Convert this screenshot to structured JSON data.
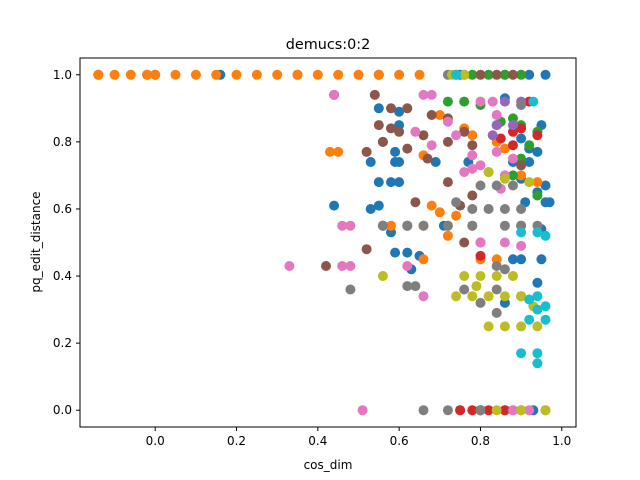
{
  "chart_data": {
    "type": "scatter",
    "title": "demucs:0:2",
    "xlabel": "cos_dim",
    "ylabel": "pq_edit_distance",
    "xlim": [
      -0.185,
      1.035
    ],
    "ylim": [
      -0.05,
      1.05
    ],
    "xticks": [
      0.0,
      0.2,
      0.4,
      0.6,
      0.8,
      1.0
    ],
    "xtick_labels": [
      "0.0",
      "0.2",
      "0.4",
      "0.6",
      "0.8",
      "1.0"
    ],
    "yticks": [
      0.0,
      0.2,
      0.4,
      0.6,
      0.8,
      1.0
    ],
    "ytick_labels": [
      "0.0",
      "0.2",
      "0.4",
      "0.6",
      "0.8",
      "1.0"
    ],
    "grid": false,
    "legend": "none",
    "series_colors": [
      "#1f77b4",
      "#ff7f0e",
      "#2ca02c",
      "#d62728",
      "#9467bd",
      "#8c564b",
      "#e377c2",
      "#7f7f7f",
      "#bcbd22",
      "#17becf"
    ],
    "series": [
      {
        "color": "#1f77b4",
        "points": [
          [
            -0.14,
            1.0
          ],
          [
            -0.02,
            1.0
          ],
          [
            0.0,
            1.0
          ],
          [
            0.16,
            1.0
          ],
          [
            0.35,
            1.0
          ],
          [
            0.55,
            1.0
          ],
          [
            0.75,
            1.0
          ],
          [
            0.92,
            1.0
          ],
          [
            0.96,
            1.0
          ],
          [
            0.55,
            0.9
          ],
          [
            0.6,
            0.89
          ],
          [
            0.86,
            0.93
          ],
          [
            0.6,
            0.85
          ],
          [
            0.56,
            0.8
          ],
          [
            0.59,
            0.77
          ],
          [
            0.53,
            0.74
          ],
          [
            0.59,
            0.74
          ],
          [
            0.6,
            0.74
          ],
          [
            0.69,
            0.74
          ],
          [
            0.9,
            0.81
          ],
          [
            0.92,
            0.78
          ],
          [
            0.94,
            0.77
          ],
          [
            0.88,
            0.74
          ],
          [
            0.77,
            0.74
          ],
          [
            0.55,
            0.68
          ],
          [
            0.58,
            0.68
          ],
          [
            0.6,
            0.68
          ],
          [
            0.9,
            0.69
          ],
          [
            0.96,
            0.67
          ],
          [
            0.94,
            0.65
          ],
          [
            0.97,
            0.62
          ],
          [
            0.91,
            0.62
          ],
          [
            0.53,
            0.6
          ],
          [
            0.55,
            0.61
          ],
          [
            0.44,
            0.61
          ],
          [
            0.56,
            0.55
          ],
          [
            0.58,
            0.53
          ],
          [
            0.71,
            0.55
          ],
          [
            0.9,
            0.55
          ],
          [
            0.95,
            0.54
          ],
          [
            0.59,
            0.47
          ],
          [
            0.62,
            0.47
          ],
          [
            0.63,
            0.42
          ],
          [
            0.65,
            0.46
          ],
          [
            0.88,
            0.45
          ],
          [
            0.9,
            0.45
          ],
          [
            0.95,
            0.45
          ],
          [
            0.94,
            0.38
          ],
          [
            0.9,
            0.34
          ],
          [
            0.86,
            0.32
          ],
          [
            0.8,
            0.0
          ],
          [
            0.86,
            0.0
          ],
          [
            0.93,
            0.0
          ],
          [
            0.75,
            0.0
          ],
          [
            0.84,
            0.85
          ],
          [
            0.95,
            0.85
          ],
          [
            0.92,
            0.74
          ],
          [
            0.96,
            0.62
          ]
        ]
      },
      {
        "color": "#ff7f0e",
        "points": [
          [
            -0.14,
            1.0
          ],
          [
            -0.1,
            1.0
          ],
          [
            -0.06,
            1.0
          ],
          [
            -0.02,
            1.0
          ],
          [
            0.0,
            1.0
          ],
          [
            0.05,
            1.0
          ],
          [
            0.1,
            1.0
          ],
          [
            0.15,
            1.0
          ],
          [
            0.2,
            1.0
          ],
          [
            0.25,
            1.0
          ],
          [
            0.3,
            1.0
          ],
          [
            0.35,
            1.0
          ],
          [
            0.4,
            1.0
          ],
          [
            0.45,
            1.0
          ],
          [
            0.5,
            1.0
          ],
          [
            0.55,
            1.0
          ],
          [
            0.6,
            1.0
          ],
          [
            0.65,
            1.0
          ],
          [
            0.86,
            1.0
          ],
          [
            0.7,
            0.88
          ],
          [
            0.76,
            0.84
          ],
          [
            0.78,
            0.82
          ],
          [
            0.43,
            0.77
          ],
          [
            0.45,
            0.77
          ],
          [
            0.66,
            0.76
          ],
          [
            0.84,
            0.8
          ],
          [
            0.86,
            0.78
          ],
          [
            0.9,
            0.7
          ],
          [
            0.94,
            0.68
          ],
          [
            0.7,
            0.59
          ],
          [
            0.74,
            0.58
          ],
          [
            0.56,
            0.55
          ],
          [
            0.58,
            0.55
          ],
          [
            0.62,
            0.55
          ],
          [
            0.66,
            0.55
          ],
          [
            0.72,
            0.55
          ],
          [
            0.78,
            0.55
          ],
          [
            0.66,
            0.45
          ],
          [
            0.8,
            0.45
          ],
          [
            0.84,
            0.45
          ],
          [
            0.8,
            0.0
          ],
          [
            0.88,
            0.0
          ],
          [
            0.68,
            0.61
          ],
          [
            0.72,
            0.52
          ]
        ]
      },
      {
        "color": "#2ca02c",
        "points": [
          [
            0.78,
            1.0
          ],
          [
            0.82,
            1.0
          ],
          [
            0.86,
            1.0
          ],
          [
            0.9,
            1.0
          ],
          [
            0.72,
            0.92
          ],
          [
            0.76,
            0.92
          ],
          [
            0.8,
            0.91
          ],
          [
            0.88,
            0.87
          ],
          [
            0.9,
            0.85
          ],
          [
            0.94,
            0.83
          ],
          [
            0.92,
            0.79
          ],
          [
            0.9,
            0.75
          ],
          [
            0.88,
            0.7
          ],
          [
            0.94,
            0.64
          ],
          [
            0.85,
            0.86
          ],
          [
            0.8,
            0.0
          ]
        ]
      },
      {
        "color": "#d62728",
        "points": [
          [
            0.92,
            0.92
          ],
          [
            0.9,
            0.84
          ],
          [
            0.88,
            0.83
          ],
          [
            0.85,
            0.81
          ],
          [
            0.88,
            0.79
          ],
          [
            0.8,
            0.46
          ],
          [
            0.75,
            0.0
          ],
          [
            0.78,
            0.0
          ],
          [
            0.82,
            0.0
          ],
          [
            0.86,
            0.0
          ],
          [
            0.94,
            0.82
          ]
        ]
      },
      {
        "color": "#9467bd",
        "points": [
          [
            0.86,
            0.92
          ],
          [
            0.88,
            0.85
          ],
          [
            0.84,
            0.85
          ],
          [
            0.83,
            0.82
          ],
          [
            0.9,
            0.92
          ]
        ]
      },
      {
        "color": "#8c564b",
        "points": [
          [
            0.76,
            1.0
          ],
          [
            0.8,
            1.0
          ],
          [
            0.84,
            1.0
          ],
          [
            0.88,
            1.0
          ],
          [
            0.44,
            0.94
          ],
          [
            0.54,
            0.94
          ],
          [
            0.58,
            0.9
          ],
          [
            0.62,
            0.9
          ],
          [
            0.68,
            0.88
          ],
          [
            0.72,
            0.87
          ],
          [
            0.55,
            0.85
          ],
          [
            0.58,
            0.84
          ],
          [
            0.6,
            0.83
          ],
          [
            0.66,
            0.82
          ],
          [
            0.72,
            0.8
          ],
          [
            0.76,
            0.83
          ],
          [
            0.78,
            0.79
          ],
          [
            0.56,
            0.8
          ],
          [
            0.52,
            0.77
          ],
          [
            0.62,
            0.78
          ],
          [
            0.67,
            0.75
          ],
          [
            0.9,
            0.73
          ],
          [
            0.72,
            0.68
          ],
          [
            0.78,
            0.64
          ],
          [
            0.62,
            0.55
          ],
          [
            0.64,
            0.62
          ],
          [
            0.42,
            0.43
          ],
          [
            0.52,
            0.48
          ],
          [
            0.76,
            0.5
          ],
          [
            0.8,
            0.5
          ],
          [
            0.75,
            0.61
          ]
        ]
      },
      {
        "color": "#e377c2",
        "points": [
          [
            0.44,
            0.94
          ],
          [
            0.66,
            0.94
          ],
          [
            0.68,
            0.94
          ],
          [
            0.8,
            0.92
          ],
          [
            0.83,
            0.92
          ],
          [
            0.84,
            0.88
          ],
          [
            0.72,
            0.86
          ],
          [
            0.74,
            0.82
          ],
          [
            0.64,
            0.83
          ],
          [
            0.68,
            0.79
          ],
          [
            0.78,
            0.76
          ],
          [
            0.8,
            0.73
          ],
          [
            0.82,
            0.71
          ],
          [
            0.86,
            0.7
          ],
          [
            0.88,
            0.75
          ],
          [
            0.76,
            0.71
          ],
          [
            0.85,
            0.66
          ],
          [
            0.46,
            0.55
          ],
          [
            0.48,
            0.55
          ],
          [
            0.8,
            0.5
          ],
          [
            0.86,
            0.5
          ],
          [
            0.9,
            0.49
          ],
          [
            0.33,
            0.43
          ],
          [
            0.46,
            0.43
          ],
          [
            0.48,
            0.43
          ],
          [
            0.62,
            0.43
          ],
          [
            0.66,
            0.34
          ],
          [
            0.51,
            0.0
          ],
          [
            0.88,
            0.0
          ],
          [
            0.92,
            0.0
          ],
          [
            0.78,
            0.72
          ],
          [
            0.84,
            0.77
          ]
        ]
      },
      {
        "color": "#7f7f7f",
        "points": [
          [
            0.72,
            1.0
          ],
          [
            0.74,
            1.0
          ],
          [
            0.8,
            0.67
          ],
          [
            0.84,
            0.67
          ],
          [
            0.88,
            0.67
          ],
          [
            0.74,
            0.62
          ],
          [
            0.78,
            0.6
          ],
          [
            0.82,
            0.6
          ],
          [
            0.86,
            0.6
          ],
          [
            0.9,
            0.6
          ],
          [
            0.56,
            0.55
          ],
          [
            0.62,
            0.55
          ],
          [
            0.66,
            0.55
          ],
          [
            0.72,
            0.55
          ],
          [
            0.78,
            0.55
          ],
          [
            0.86,
            0.55
          ],
          [
            0.9,
            0.55
          ],
          [
            0.94,
            0.55
          ],
          [
            0.84,
            0.43
          ],
          [
            0.62,
            0.37
          ],
          [
            0.64,
            0.37
          ],
          [
            0.76,
            0.36
          ],
          [
            0.84,
            0.36
          ],
          [
            0.8,
            0.32
          ],
          [
            0.84,
            0.29
          ],
          [
            0.48,
            0.36
          ],
          [
            0.66,
            0.0
          ],
          [
            0.72,
            0.0
          ],
          [
            0.8,
            0.0
          ],
          [
            0.9,
            0.0
          ],
          [
            0.96,
            0.0
          ],
          [
            0.9,
            0.91
          ],
          [
            0.86,
            0.42
          ]
        ]
      },
      {
        "color": "#bcbd22",
        "points": [
          [
            0.73,
            1.0
          ],
          [
            0.76,
            1.0
          ],
          [
            0.82,
            0.71
          ],
          [
            0.86,
            0.69
          ],
          [
            0.92,
            0.68
          ],
          [
            0.76,
            0.4
          ],
          [
            0.8,
            0.4
          ],
          [
            0.84,
            0.4
          ],
          [
            0.88,
            0.4
          ],
          [
            0.74,
            0.34
          ],
          [
            0.78,
            0.34
          ],
          [
            0.82,
            0.34
          ],
          [
            0.86,
            0.34
          ],
          [
            0.9,
            0.34
          ],
          [
            0.82,
            0.25
          ],
          [
            0.86,
            0.25
          ],
          [
            0.9,
            0.25
          ],
          [
            0.94,
            0.25
          ],
          [
            0.56,
            0.4
          ],
          [
            0.84,
            0.0
          ],
          [
            0.9,
            0.0
          ],
          [
            0.96,
            0.0
          ],
          [
            0.79,
            0.37
          ],
          [
            0.93,
            0.31
          ]
        ]
      },
      {
        "color": "#17becf",
        "points": [
          [
            0.74,
            1.0
          ],
          [
            0.93,
            0.92
          ],
          [
            0.9,
            0.53
          ],
          [
            0.94,
            0.53
          ],
          [
            0.96,
            0.52
          ],
          [
            0.92,
            0.33
          ],
          [
            0.94,
            0.3
          ],
          [
            0.96,
            0.27
          ],
          [
            0.92,
            0.27
          ],
          [
            0.9,
            0.17
          ],
          [
            0.94,
            0.17
          ],
          [
            0.94,
            0.14
          ],
          [
            0.96,
            0.31
          ],
          [
            0.94,
            0.34
          ]
        ]
      }
    ]
  }
}
